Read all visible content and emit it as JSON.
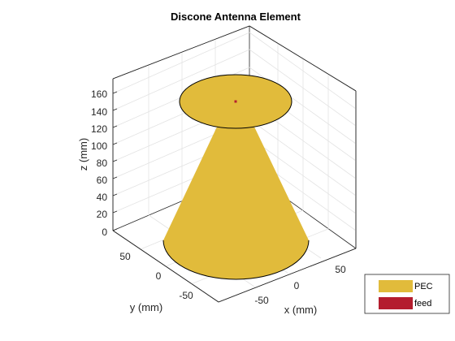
{
  "title": "Discone Antenna Element",
  "axes": {
    "x_label": "x (mm)",
    "y_label": "y (mm)",
    "z_label": "z (mm)",
    "x_ticks": [
      "-50",
      "0",
      "50"
    ],
    "y_ticks": [
      "50",
      "0",
      "-50"
    ],
    "z_ticks": [
      "0",
      "20",
      "40",
      "60",
      "80",
      "100",
      "120",
      "140",
      "160"
    ],
    "z_range": [
      0,
      160
    ],
    "grid": true
  },
  "legend": {
    "placement": "bottom-right",
    "items": [
      {
        "label": "PEC",
        "color": "#E1BB3B"
      },
      {
        "label": "feed",
        "color": "#B41D2E"
      }
    ]
  },
  "colors": {
    "pec": "#E1BB3B",
    "feed": "#B41D2E",
    "edge": "#000000",
    "grid": "#E3E3E3",
    "axis": "#262626"
  }
}
